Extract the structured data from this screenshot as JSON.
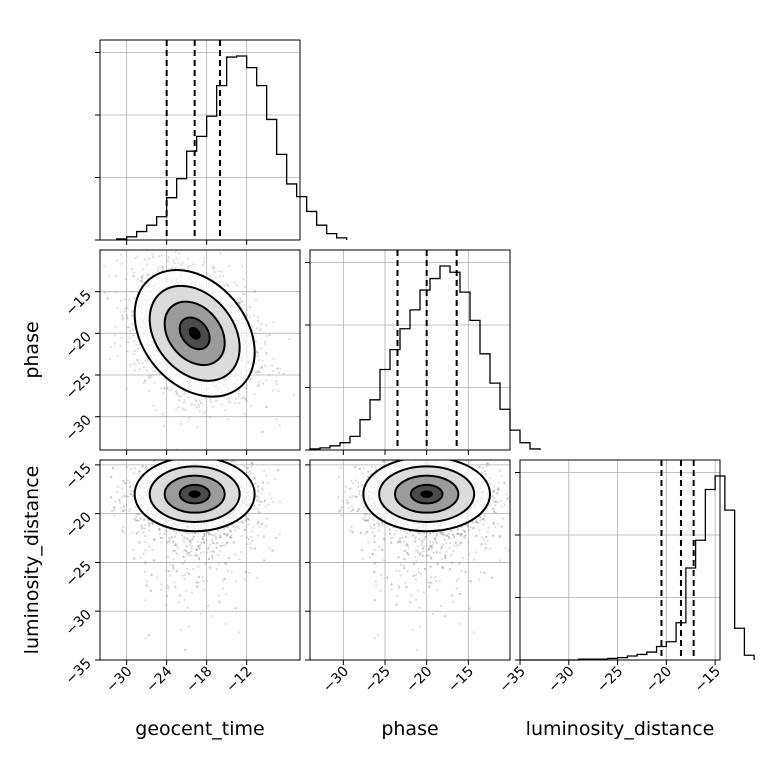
{
  "chart_data": {
    "type": "corner",
    "parameters": [
      "geocent_time",
      "phase",
      "luminosity_distance"
    ],
    "ranges": {
      "geocent_time": [
        -34,
        -4
      ],
      "phase": [
        -34,
        -10
      ],
      "luminosity_distance": [
        -35,
        -14.5
      ]
    },
    "ticks": {
      "geocent_time": [
        -30,
        -24,
        -18,
        -12
      ],
      "phase": [
        -30,
        -25,
        -20,
        -15
      ],
      "luminosity_distance": [
        -35,
        -30,
        -25,
        -20,
        -15
      ]
    },
    "tick_labels": {
      "geocent_time": [
        "−30",
        "−24",
        "−18",
        "−12"
      ],
      "phase": [
        "−30",
        "−25",
        "−20",
        "−15"
      ],
      "luminosity_distance": [
        "−35",
        "−30",
        "−25",
        "−20",
        "−15"
      ]
    },
    "axis_labels": {
      "geocent_time": "geocent_time",
      "phase": "phase",
      "luminosity_distance": "luminosity_distance"
    },
    "histograms": {
      "geocent_time": {
        "bin_width": 1.5,
        "edges_start": -31.5,
        "counts": [
          1,
          3,
          8,
          14,
          22,
          40,
          58,
          84,
          98,
          117,
          146,
          173,
          174,
          163,
          146,
          114,
          81,
          53,
          41,
          27,
          14,
          6,
          2
        ],
        "quantiles": [
          -24.0,
          -19.8,
          -16.0
        ]
      },
      "phase": {
        "bin_width": 1.2,
        "edges_start": -34.0,
        "counts": [
          1,
          2,
          4,
          7,
          13,
          29,
          48,
          77,
          96,
          116,
          134,
          153,
          164,
          176,
          170,
          151,
          124,
          92,
          64,
          39,
          19,
          7,
          1
        ],
        "quantiles": [
          -23.5,
          -20.0,
          -16.4
        ]
      },
      "luminosity_distance": {
        "bin_width": 1.0,
        "edges_start": -35.0,
        "counts": [
          0,
          0,
          0,
          0,
          0,
          0,
          1,
          1,
          1,
          2,
          3,
          5,
          7,
          10,
          17,
          23,
          47,
          116,
          151,
          215,
          232,
          189,
          40,
          6
        ],
        "quantiles": [
          -20.5,
          -18.5,
          -17.2
        ]
      }
    },
    "pairs": [
      {
        "x": "geocent_time",
        "y": "phase",
        "center": [
          -19.8,
          -20.0
        ],
        "sd": [
          4.5,
          3.8
        ],
        "rho": -0.3,
        "n": 2500
      },
      {
        "x": "geocent_time",
        "y": "luminosity_distance",
        "center": [
          -19.8,
          -18.0
        ],
        "sd": [
          4.5,
          1.9
        ],
        "rho": 0.0,
        "n": 2500,
        "tail": "low"
      },
      {
        "x": "phase",
        "y": "luminosity_distance",
        "center": [
          -20.0,
          -18.0
        ],
        "sd": [
          3.8,
          1.9
        ],
        "rho": 0.0,
        "n": 2500,
        "tail": "low"
      }
    ],
    "contour_levels_sigma": [
      0.5,
      1.0,
      1.5,
      2.0
    ],
    "grid": true
  }
}
